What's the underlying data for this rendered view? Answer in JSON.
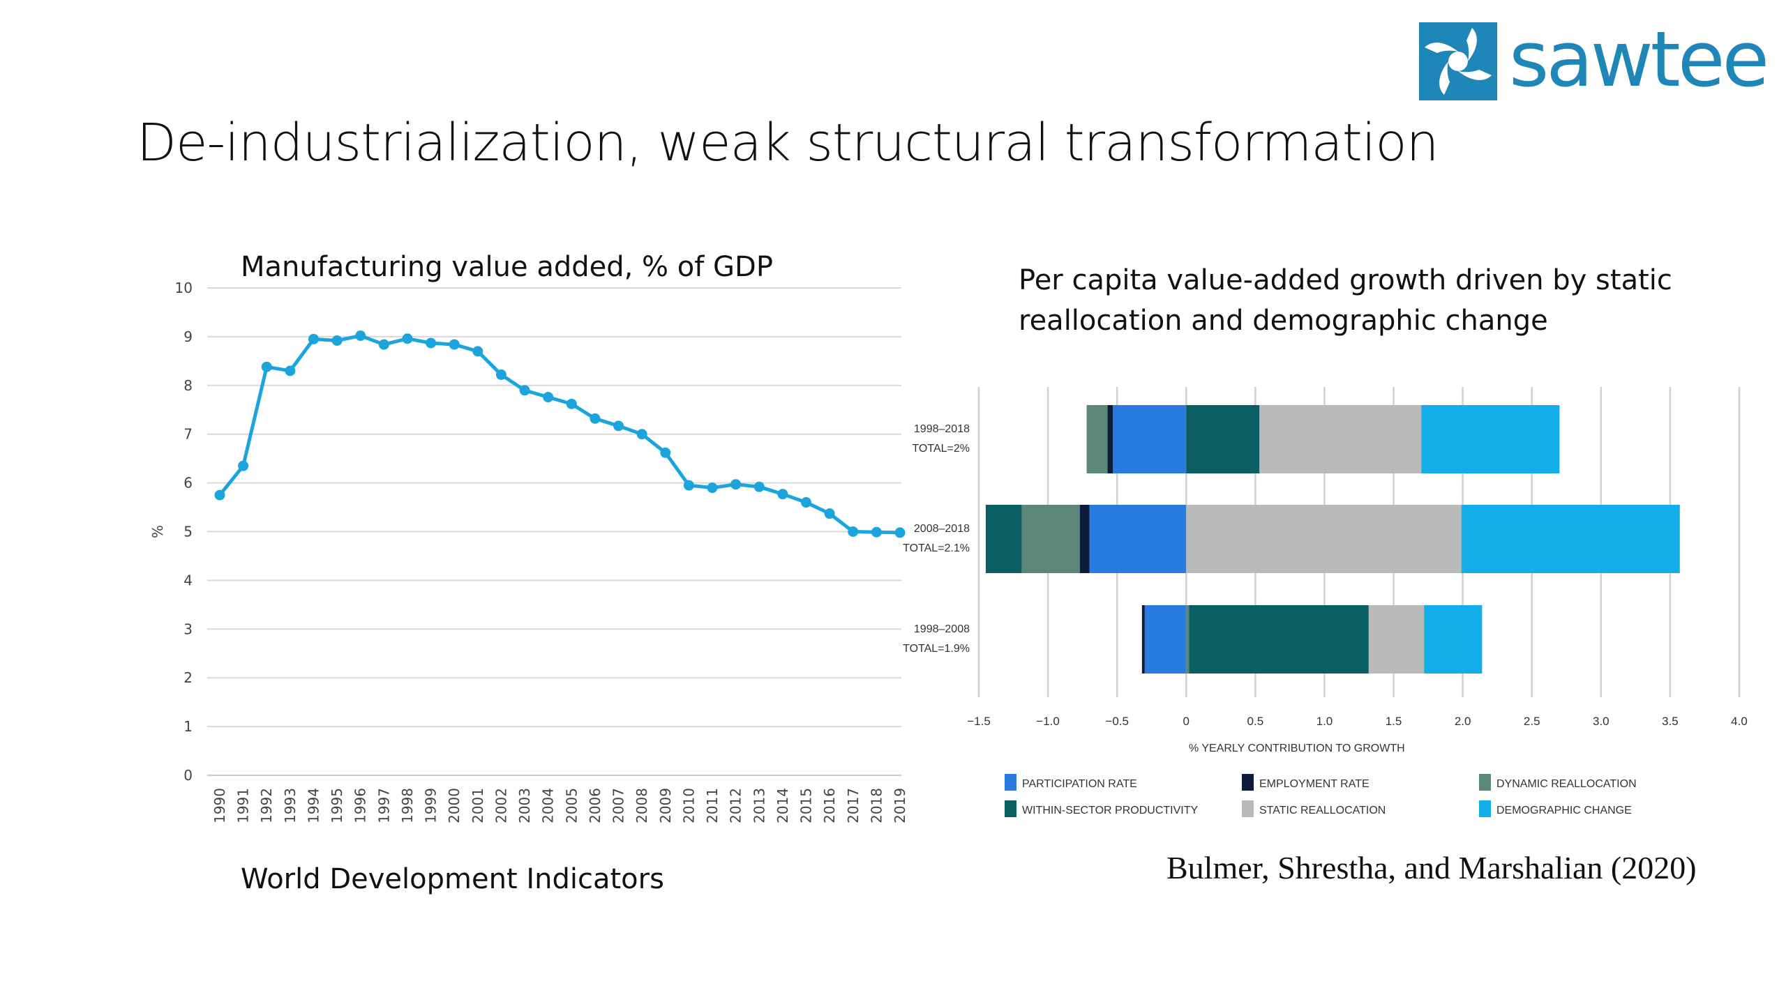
{
  "slide": {
    "title": "De-industrialization, weak structural transformation",
    "logo_text": "sawtee"
  },
  "colors": {
    "line": "#1ba5dc",
    "grid": "#d9d9d9",
    "logo": "#1f86b8"
  },
  "chart_data": [
    {
      "type": "line",
      "title": "Manufacturing value added, % of GDP",
      "ylabel": "%",
      "xlabel": "",
      "ylim": [
        0,
        10
      ],
      "yticks": [
        0,
        1,
        2,
        3,
        4,
        5,
        6,
        7,
        8,
        9,
        10
      ],
      "x": [
        "1990",
        "1991",
        "1992",
        "1993",
        "1994",
        "1995",
        "1996",
        "1997",
        "1998",
        "1999",
        "2000",
        "2001",
        "2002",
        "2003",
        "2004",
        "2005",
        "2006",
        "2007",
        "2008",
        "2009",
        "2010",
        "2011",
        "2012",
        "2013",
        "2014",
        "2015",
        "2016",
        "2017",
        "2018",
        "2019"
      ],
      "values": [
        5.75,
        6.35,
        8.38,
        8.3,
        8.95,
        8.92,
        9.02,
        8.84,
        8.96,
        8.87,
        8.84,
        8.7,
        8.22,
        7.9,
        7.76,
        7.62,
        7.32,
        7.17,
        7.0,
        6.62,
        5.95,
        5.9,
        5.97,
        5.92,
        5.77,
        5.6,
        5.37,
        5.0,
        4.99,
        4.98
      ],
      "grid": true,
      "source": "World Development Indicators"
    },
    {
      "type": "bar",
      "orientation": "horizontal",
      "stacked": true,
      "title": "Per capita value-added growth driven by static reallocation and demographic change",
      "xlabel": "% YEARLY CONTRIBUTION TO GROWTH",
      "xlim": [
        -1.5,
        4.0
      ],
      "xticks": [
        "−1.5",
        "−1.0",
        "−0.5",
        "0",
        "0.5",
        "1.0",
        "1.5",
        "2.0",
        "2.5",
        "3.0",
        "3.5",
        "4.0"
      ],
      "xtick_values": [
        -1.5,
        -1.0,
        -0.5,
        0,
        0.5,
        1.0,
        1.5,
        2.0,
        2.5,
        3.0,
        3.5,
        4.0
      ],
      "categories": [
        {
          "period": "1998–2018",
          "total": "TOTAL=2%"
        },
        {
          "period": "2008–2018",
          "total": "TOTAL=2.1%"
        },
        {
          "period": "1998–2008",
          "total": "TOTAL=1.9%"
        }
      ],
      "series": [
        {
          "name": "PARTICIPATION RATE",
          "color": "#2a7be0",
          "values": [
            -0.53,
            -0.7,
            -0.3
          ]
        },
        {
          "name": "EMPLOYMENT RATE",
          "color": "#0d1b3d",
          "values": [
            -0.04,
            -0.07,
            -0.02
          ]
        },
        {
          "name": "DYNAMIC REALLOCATION",
          "color": "#5a877a",
          "values": [
            -0.15,
            -0.42,
            0.02
          ]
        },
        {
          "name": "WITHIN-SECTOR PRODUCTIVITY",
          "color": "#0b5e61",
          "values": [
            0.53,
            -0.26,
            1.3
          ]
        },
        {
          "name": "STATIC REALLOCATION",
          "color": "#b9bbbb",
          "values": [
            1.17,
            1.99,
            0.4
          ]
        },
        {
          "name": "DEMOGRAPHIC CHANGE",
          "color": "#13aee9",
          "values": [
            1.0,
            1.58,
            0.42
          ]
        }
      ],
      "legend_position": "bottom",
      "source": "Bulmer, Shrestha, and Marshalian (2020)"
    }
  ]
}
